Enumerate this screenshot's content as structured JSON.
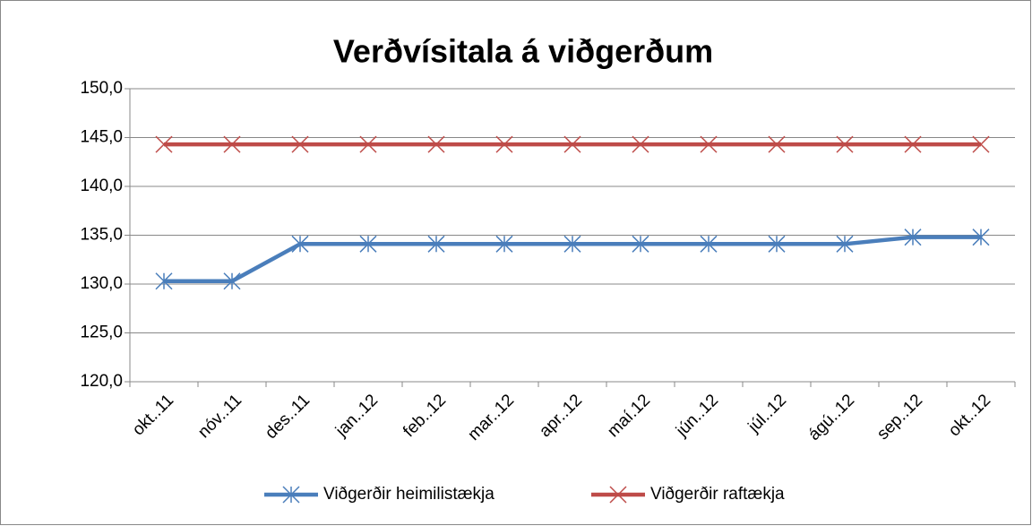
{
  "chart_data": {
    "type": "line",
    "title": "Verðvísitala á viðgerðum",
    "categories": [
      "okt..11",
      "nóv..11",
      "des..11",
      "jan..12",
      "feb..12",
      "mar..12",
      "apr..12",
      "maí.12",
      "jún..12",
      "júl..12",
      "ágú..12",
      "sep..12",
      "okt..12"
    ],
    "series": [
      {
        "name": "Viðgerðir heimilistækja",
        "color": "#4a7ebb",
        "marker": "star",
        "values": [
          130.3,
          130.3,
          134.1,
          134.1,
          134.1,
          134.1,
          134.1,
          134.1,
          134.1,
          134.1,
          134.1,
          134.8,
          134.8
        ]
      },
      {
        "name": "Viðgerðir raftækja",
        "color": "#be4b48",
        "marker": "x",
        "values": [
          144.3,
          144.3,
          144.3,
          144.3,
          144.3,
          144.3,
          144.3,
          144.3,
          144.3,
          144.3,
          144.3,
          144.3,
          144.3
        ]
      }
    ],
    "ylim": [
      120,
      150
    ],
    "yticks": [
      {
        "value": 120,
        "label": "120,0"
      },
      {
        "value": 125,
        "label": "125,0"
      },
      {
        "value": 130,
        "label": "130,0"
      },
      {
        "value": 135,
        "label": "135,0"
      },
      {
        "value": 140,
        "label": "140,0"
      },
      {
        "value": 145,
        "label": "145,0"
      },
      {
        "value": 150,
        "label": "150,0"
      }
    ],
    "grid": true,
    "legend": "bottom"
  }
}
